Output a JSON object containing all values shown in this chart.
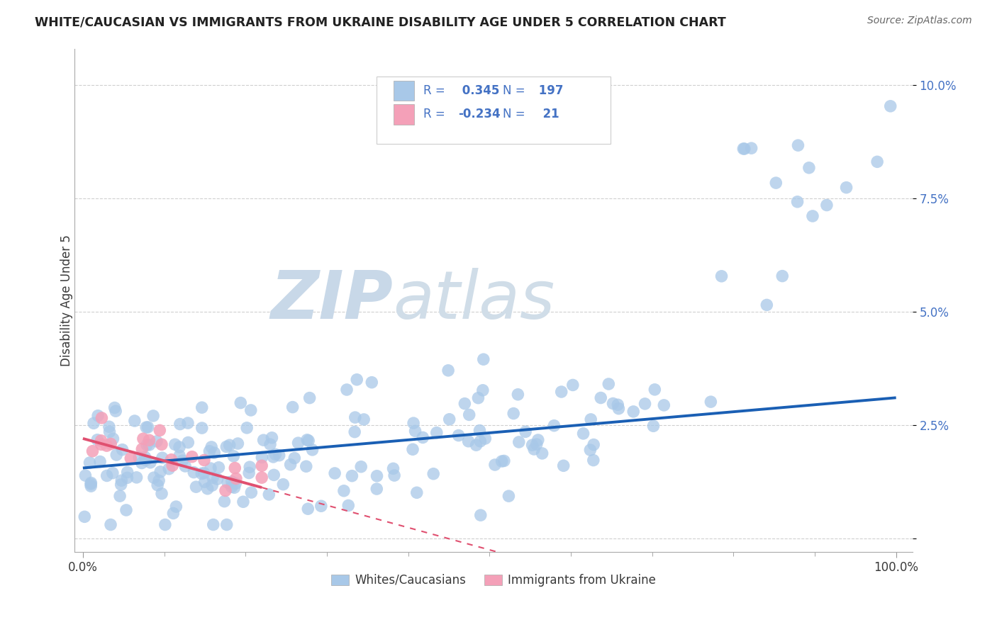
{
  "title": "WHITE/CAUCASIAN VS IMMIGRANTS FROM UKRAINE DISABILITY AGE UNDER 5 CORRELATION CHART",
  "source": "Source: ZipAtlas.com",
  "ylabel": "Disability Age Under 5",
  "watermark_zip": "ZIP",
  "watermark_atlas": "atlas",
  "xlim": [
    -0.01,
    1.02
  ],
  "ylim": [
    -0.003,
    0.108
  ],
  "ytick_vals": [
    0.0,
    0.025,
    0.05,
    0.075,
    0.1
  ],
  "ytick_labels": [
    "",
    "2.5%",
    "5.0%",
    "7.5%",
    "10.0%"
  ],
  "xtick_vals": [
    0.0,
    1.0
  ],
  "xtick_labels": [
    "0.0%",
    "100.0%"
  ],
  "legend1_r": "0.345",
  "legend1_n": "197",
  "legend2_r": "-0.234",
  "legend2_n": "21",
  "blue_scatter_color": "#a8c8e8",
  "pink_scatter_color": "#f4a0b8",
  "blue_line_color": "#1a5fb4",
  "pink_line_color": "#e05070",
  "grid_color": "#bbbbbb",
  "background_color": "#ffffff",
  "text_color": "#3a3a3a",
  "legend_text_color": "#4472c4",
  "title_color": "#222222",
  "source_color": "#666666",
  "watermark_zip_color": "#c8d8e8",
  "watermark_atlas_color": "#d0dde8",
  "blue_trend_start_y": 0.0155,
  "blue_trend_end_y": 0.031,
  "pink_trend_start_y": 0.022,
  "pink_trend_end_y": -0.005,
  "pink_trend_end_x": 0.55
}
